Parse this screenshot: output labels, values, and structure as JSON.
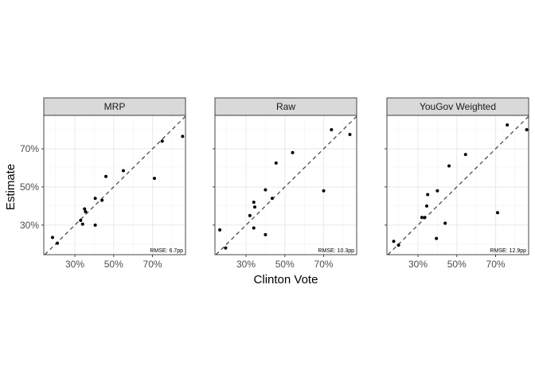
{
  "chart_data": {
    "type": "scatter",
    "xlabel": "Clinton Vote",
    "ylabel": "Estimate",
    "xlim": [
      0.14,
      0.87
    ],
    "ylim": [
      0.145,
      0.875
    ],
    "x_ticks": [
      0.3,
      0.5,
      0.7
    ],
    "x_tick_labels": [
      "30%",
      "50%",
      "70%"
    ],
    "y_ticks": [
      0.3,
      0.5,
      0.7
    ],
    "y_tick_labels": [
      "30%",
      "50%",
      "70%"
    ],
    "grid": true,
    "reference_line": "y = x (dashed)",
    "facets": [
      {
        "title": "MRP",
        "annotation": "RMSE: 6.7pp",
        "points": [
          {
            "x": 0.185,
            "y": 0.235
          },
          {
            "x": 0.21,
            "y": 0.205
          },
          {
            "x": 0.33,
            "y": 0.325
          },
          {
            "x": 0.34,
            "y": 0.305
          },
          {
            "x": 0.35,
            "y": 0.385
          },
          {
            "x": 0.355,
            "y": 0.37
          },
          {
            "x": 0.405,
            "y": 0.3
          },
          {
            "x": 0.405,
            "y": 0.44
          },
          {
            "x": 0.44,
            "y": 0.43
          },
          {
            "x": 0.46,
            "y": 0.555
          },
          {
            "x": 0.55,
            "y": 0.585
          },
          {
            "x": 0.71,
            "y": 0.545
          },
          {
            "x": 0.75,
            "y": 0.74
          },
          {
            "x": 0.855,
            "y": 0.765
          }
        ]
      },
      {
        "title": "Raw",
        "annotation": "RMSE: 10.3pp",
        "points": [
          {
            "x": 0.165,
            "y": 0.275
          },
          {
            "x": 0.195,
            "y": 0.18
          },
          {
            "x": 0.32,
            "y": 0.35
          },
          {
            "x": 0.34,
            "y": 0.42
          },
          {
            "x": 0.345,
            "y": 0.395
          },
          {
            "x": 0.34,
            "y": 0.285
          },
          {
            "x": 0.4,
            "y": 0.485
          },
          {
            "x": 0.4,
            "y": 0.25
          },
          {
            "x": 0.435,
            "y": 0.44
          },
          {
            "x": 0.455,
            "y": 0.625
          },
          {
            "x": 0.54,
            "y": 0.68
          },
          {
            "x": 0.7,
            "y": 0.48
          },
          {
            "x": 0.74,
            "y": 0.8
          },
          {
            "x": 0.835,
            "y": 0.775
          }
        ]
      },
      {
        "title": "YouGov Weighted",
        "annotation": "RMSE: 12.9pp",
        "points": [
          {
            "x": 0.175,
            "y": 0.215
          },
          {
            "x": 0.2,
            "y": 0.195
          },
          {
            "x": 0.32,
            "y": 0.34
          },
          {
            "x": 0.335,
            "y": 0.34
          },
          {
            "x": 0.345,
            "y": 0.4
          },
          {
            "x": 0.35,
            "y": 0.46
          },
          {
            "x": 0.395,
            "y": 0.23
          },
          {
            "x": 0.4,
            "y": 0.48
          },
          {
            "x": 0.44,
            "y": 0.31
          },
          {
            "x": 0.46,
            "y": 0.61
          },
          {
            "x": 0.545,
            "y": 0.67
          },
          {
            "x": 0.71,
            "y": 0.365
          },
          {
            "x": 0.76,
            "y": 0.825
          },
          {
            "x": 0.86,
            "y": 0.8
          }
        ]
      }
    ]
  }
}
